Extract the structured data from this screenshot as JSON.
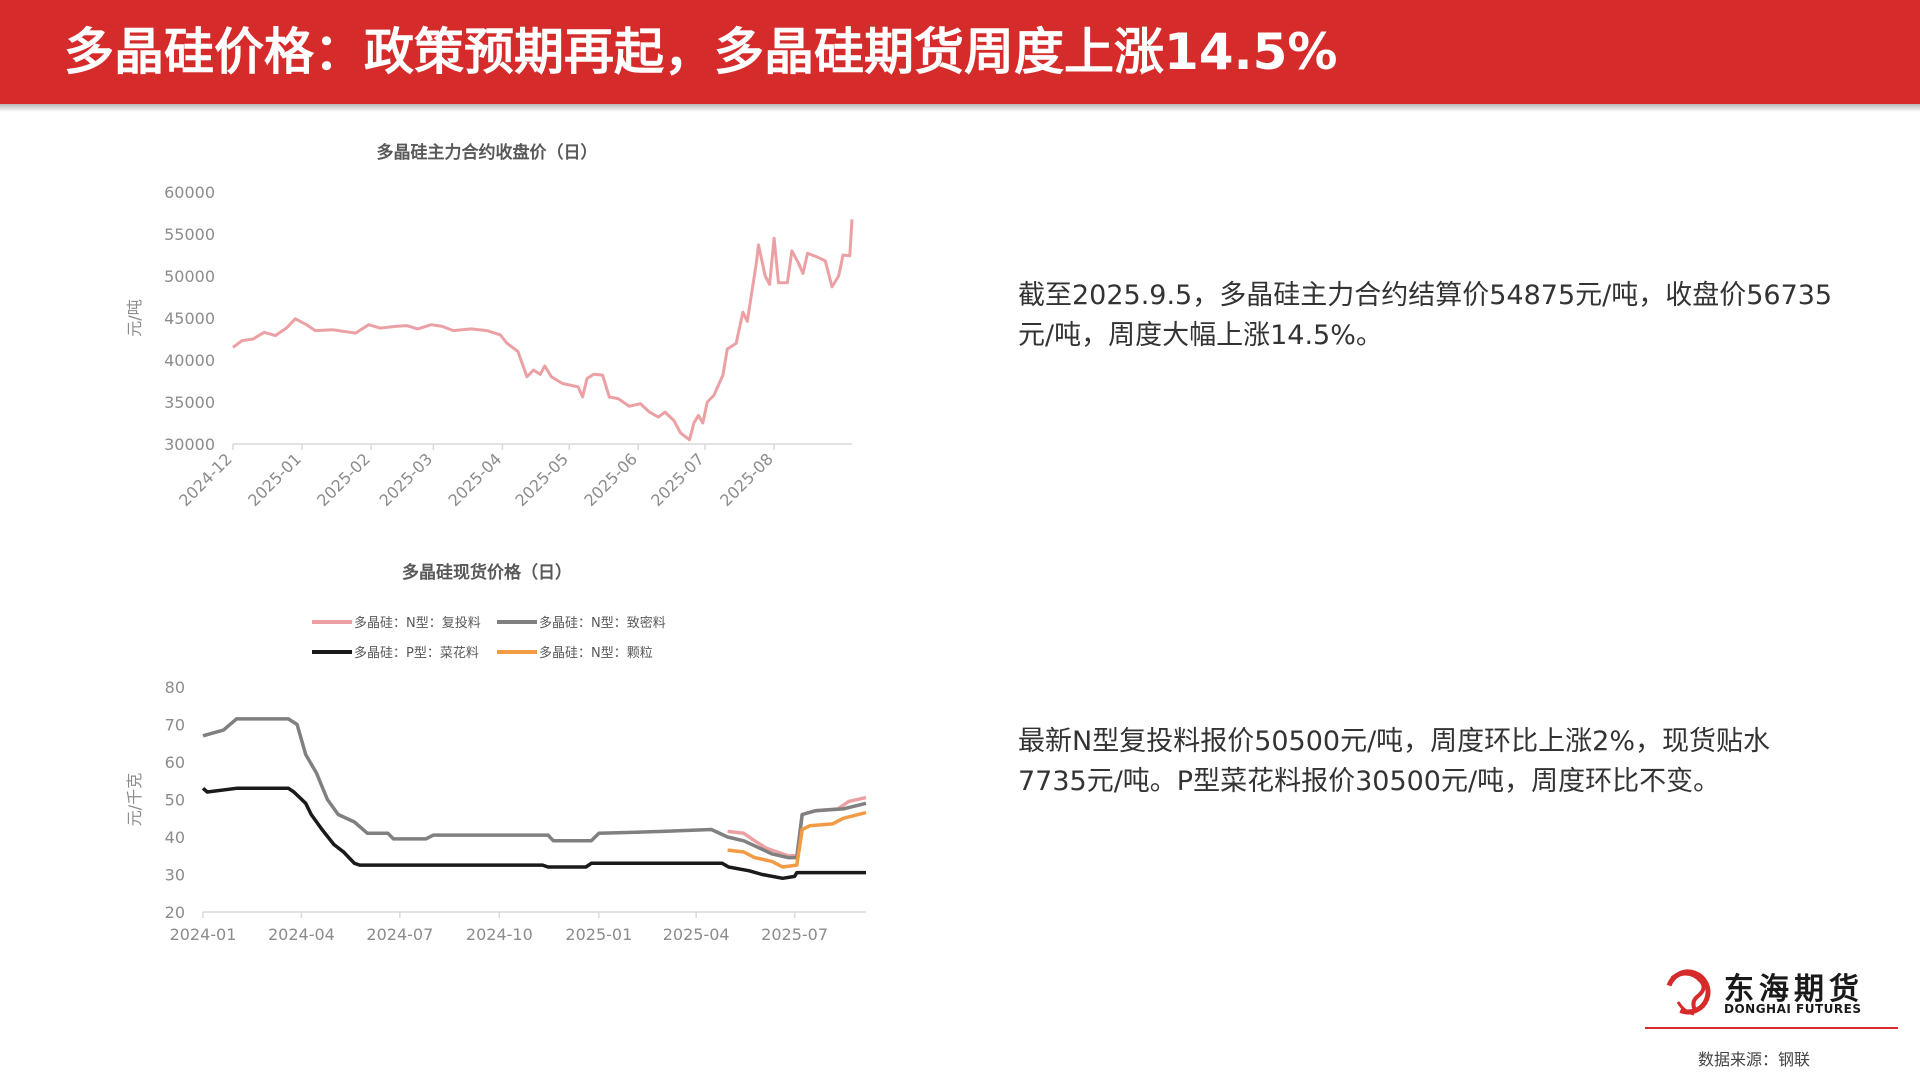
{
  "header": {
    "title": "多晶硅价格：政策预期再起，多晶硅期货周度上涨14.5%",
    "bg_color": "#d62b2b"
  },
  "text_blocks": [
    "截至2025.9.5，多晶硅主力合约结算价54875元/吨，收盘价56735元/吨，周度大幅上涨14.5%。",
    "最新N型复投料报价50500元/吨，周度环比上涨2%，现货贴水7735元/吨。P型菜花料报价30500元/吨，周度环比不变。"
  ],
  "logo": {
    "name_cn": "东海期货",
    "name_en": "DONGHAI FUTURES",
    "icon": "dragon-logo-icon"
  },
  "footer": {
    "source": "数据来源：钢联"
  },
  "chart_data": [
    {
      "type": "line",
      "title": "多晶硅主力合约收盘价（日）",
      "ylabel": "元/吨",
      "xlabel": "",
      "ylim": [
        30000,
        60000
      ],
      "yticks": [
        30000,
        35000,
        40000,
        45000,
        50000,
        55000,
        60000
      ],
      "xticks": [
        "2024-12",
        "2025-01",
        "2025-02",
        "2025-03",
        "2025-04",
        "2025-05",
        "2025-06",
        "2025-07",
        "2025-08"
      ],
      "xlim": [
        "2024-12-01",
        "2025-09-05"
      ],
      "grid": false,
      "legend": "none",
      "series": [
        {
          "color": "#eba1a3",
          "points": [
            [
              "2024-12-01",
              41500
            ],
            [
              "2024-12-05",
              42300
            ],
            [
              "2024-12-10",
              42500
            ],
            [
              "2024-12-15",
              43300
            ],
            [
              "2024-12-20",
              42900
            ],
            [
              "2024-12-25",
              43800
            ],
            [
              "2024-12-29",
              44900
            ],
            [
              "2025-01-03",
              44200
            ],
            [
              "2025-01-07",
              43500
            ],
            [
              "2025-01-15",
              43600
            ],
            [
              "2025-01-25",
              43200
            ],
            [
              "2025-01-31",
              44200
            ],
            [
              "2025-02-05",
              43800
            ],
            [
              "2025-02-12",
              44000
            ],
            [
              "2025-02-17",
              44100
            ],
            [
              "2025-02-22",
              43700
            ],
            [
              "2025-02-28",
              44200
            ],
            [
              "2025-03-05",
              44000
            ],
            [
              "2025-03-10",
              43500
            ],
            [
              "2025-03-18",
              43700
            ],
            [
              "2025-03-25",
              43500
            ],
            [
              "2025-03-31",
              43000
            ],
            [
              "2025-04-03",
              42000
            ],
            [
              "2025-04-08",
              41000
            ],
            [
              "2025-04-12",
              38000
            ],
            [
              "2025-04-15",
              38800
            ],
            [
              "2025-04-18",
              38300
            ],
            [
              "2025-04-20",
              39300
            ],
            [
              "2025-04-23",
              38000
            ],
            [
              "2025-04-28",
              37200
            ],
            [
              "2025-05-05",
              36800
            ],
            [
              "2025-05-07",
              35600
            ],
            [
              "2025-05-09",
              37800
            ],
            [
              "2025-05-12",
              38300
            ],
            [
              "2025-05-16",
              38200
            ],
            [
              "2025-05-19",
              35600
            ],
            [
              "2025-05-23",
              35400
            ],
            [
              "2025-05-28",
              34500
            ],
            [
              "2025-06-02",
              34800
            ],
            [
              "2025-06-06",
              33800
            ],
            [
              "2025-06-10",
              33200
            ],
            [
              "2025-06-13",
              33800
            ],
            [
              "2025-06-17",
              32800
            ],
            [
              "2025-06-20",
              31300
            ],
            [
              "2025-06-24",
              30500
            ],
            [
              "2025-06-26",
              32500
            ],
            [
              "2025-06-28",
              33400
            ],
            [
              "2025-06-30",
              32500
            ],
            [
              "2025-07-02",
              35000
            ],
            [
              "2025-07-05",
              35800
            ],
            [
              "2025-07-09",
              38200
            ],
            [
              "2025-07-11",
              41300
            ],
            [
              "2025-07-15",
              42000
            ],
            [
              "2025-07-18",
              45700
            ],
            [
              "2025-07-20",
              44600
            ],
            [
              "2025-07-24",
              51500
            ],
            [
              "2025-07-25",
              53700
            ],
            [
              "2025-07-28",
              50000
            ],
            [
              "2025-07-30",
              49000
            ],
            [
              "2025-08-01",
              54500
            ],
            [
              "2025-08-03",
              49200
            ],
            [
              "2025-08-07",
              49200
            ],
            [
              "2025-08-09",
              53000
            ],
            [
              "2025-08-12",
              51500
            ],
            [
              "2025-08-14",
              50300
            ],
            [
              "2025-08-16",
              52700
            ],
            [
              "2025-08-20",
              52300
            ],
            [
              "2025-08-24",
              51800
            ],
            [
              "2025-08-27",
              48700
            ],
            [
              "2025-08-30",
              50000
            ],
            [
              "2025-09-01",
              52500
            ],
            [
              "2025-09-04",
              52400
            ],
            [
              "2025-09-05",
              56735
            ]
          ]
        }
      ]
    },
    {
      "type": "line",
      "title": "多晶硅现货价格（日）",
      "ylabel": "元/千克",
      "xlabel": "",
      "ylim": [
        20,
        80
      ],
      "yticks": [
        20,
        30,
        40,
        50,
        60,
        70,
        80
      ],
      "xticks": [
        "2024-01",
        "2024-04",
        "2024-07",
        "2024-10",
        "2025-01",
        "2025-04",
        "2025-07"
      ],
      "xlim": [
        "2024-01-01",
        "2025-09-05"
      ],
      "grid": false,
      "legend": "top",
      "series": [
        {
          "name": "多晶硅：N型：复投料",
          "color": "#eba1a3",
          "points": [
            [
              "2025-04-30",
              41.5
            ],
            [
              "2025-05-15",
              41.0
            ],
            [
              "2025-05-25",
              39.0
            ],
            [
              "2025-06-05",
              37.0
            ],
            [
              "2025-06-15",
              36.0
            ],
            [
              "2025-06-25",
              35.0
            ],
            [
              "2025-07-03",
              35.0
            ],
            [
              "2025-07-08",
              46.0
            ],
            [
              "2025-07-20",
              47.0
            ],
            [
              "2025-08-10",
              47.5
            ],
            [
              "2025-08-20",
              49.5
            ],
            [
              "2025-09-05",
              50.5
            ]
          ]
        },
        {
          "name": "多晶硅：N型：致密料",
          "color": "#808080",
          "points": [
            [
              "2024-01-01",
              67.0
            ],
            [
              "2024-01-20",
              68.5
            ],
            [
              "2024-02-01",
              71.5
            ],
            [
              "2024-03-20",
              71.5
            ],
            [
              "2024-03-28",
              70.0
            ],
            [
              "2024-04-05",
              62.0
            ],
            [
              "2024-04-15",
              57.0
            ],
            [
              "2024-04-25",
              50.0
            ],
            [
              "2024-05-05",
              46.0
            ],
            [
              "2024-05-20",
              44.0
            ],
            [
              "2024-06-01",
              41.0
            ],
            [
              "2024-06-20",
              41.0
            ],
            [
              "2024-06-25",
              39.5
            ],
            [
              "2024-07-25",
              39.5
            ],
            [
              "2024-08-01",
              40.5
            ],
            [
              "2024-11-15",
              40.5
            ],
            [
              "2024-11-20",
              39.0
            ],
            [
              "2024-12-25",
              39.0
            ],
            [
              "2025-01-01",
              41.0
            ],
            [
              "2025-03-01",
              41.5
            ],
            [
              "2025-04-15",
              42.0
            ],
            [
              "2025-04-30",
              40.0
            ],
            [
              "2025-05-15",
              39.0
            ],
            [
              "2025-05-30",
              37.0
            ],
            [
              "2025-06-10",
              35.5
            ],
            [
              "2025-06-25",
              34.5
            ],
            [
              "2025-07-03",
              34.5
            ],
            [
              "2025-07-08",
              46.0
            ],
            [
              "2025-07-20",
              47.0
            ],
            [
              "2025-08-15",
              47.5
            ],
            [
              "2025-09-05",
              49.0
            ]
          ]
        },
        {
          "name": "多晶硅：P型：菜花料",
          "color": "#1a1a1a",
          "points": [
            [
              "2024-01-01",
              53.0
            ],
            [
              "2024-01-05",
              52.0
            ],
            [
              "2024-02-01",
              53.0
            ],
            [
              "2024-03-20",
              53.0
            ],
            [
              "2024-03-25",
              52.0
            ],
            [
              "2024-04-05",
              49.0
            ],
            [
              "2024-04-10",
              46.0
            ],
            [
              "2024-04-20",
              42.0
            ],
            [
              "2024-05-01",
              38.0
            ],
            [
              "2024-05-10",
              36.0
            ],
            [
              "2024-05-20",
              33.0
            ],
            [
              "2024-05-25",
              32.5
            ],
            [
              "2024-11-10",
              32.5
            ],
            [
              "2024-11-15",
              32.0
            ],
            [
              "2024-12-20",
              32.0
            ],
            [
              "2024-12-25",
              33.0
            ],
            [
              "2025-04-25",
              33.0
            ],
            [
              "2025-05-01",
              32.0
            ],
            [
              "2025-05-20",
              31.0
            ],
            [
              "2025-06-01",
              30.0
            ],
            [
              "2025-06-20",
              29.0
            ],
            [
              "2025-07-01",
              29.5
            ],
            [
              "2025-07-03",
              30.5
            ],
            [
              "2025-09-05",
              30.5
            ]
          ]
        },
        {
          "name": "多晶硅：N型：颗粒",
          "color": "#f29b45",
          "points": [
            [
              "2025-04-30",
              36.5
            ],
            [
              "2025-05-15",
              36.0
            ],
            [
              "2025-05-25",
              34.5
            ],
            [
              "2025-06-10",
              33.5
            ],
            [
              "2025-06-20",
              32.0
            ],
            [
              "2025-07-03",
              32.5
            ],
            [
              "2025-07-08",
              42.0
            ],
            [
              "2025-07-15",
              43.0
            ],
            [
              "2025-08-05",
              43.5
            ],
            [
              "2025-08-15",
              45.0
            ],
            [
              "2025-09-05",
              46.5
            ]
          ]
        }
      ]
    }
  ]
}
